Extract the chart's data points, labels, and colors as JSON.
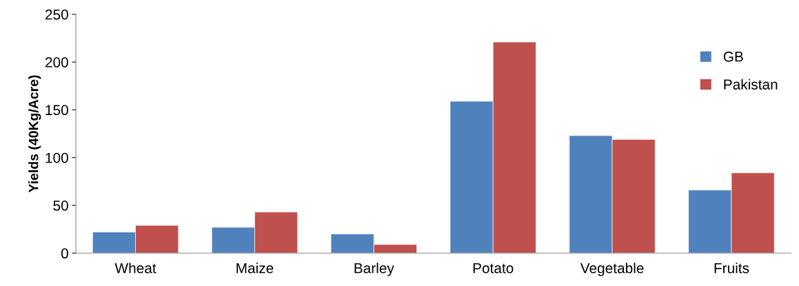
{
  "chart_data": {
    "type": "bar",
    "ylabel": "Yields (40Kg/Acre)",
    "categories": [
      "Wheat",
      "Maize",
      "Barley",
      "Potato",
      "Vegetable",
      "Fruits"
    ],
    "series": [
      {
        "name": "GB",
        "color": "#4f81bd",
        "values": [
          22,
          27,
          20,
          159,
          123,
          66
        ]
      },
      {
        "name": "Pakistan",
        "color": "#c0504d",
        "values": [
          29,
          43,
          9,
          221,
          119,
          84
        ]
      }
    ],
    "ylim": [
      0,
      250
    ],
    "yticks": [
      0,
      50,
      100,
      150,
      200,
      250
    ],
    "grid": false,
    "legend": "top right"
  }
}
